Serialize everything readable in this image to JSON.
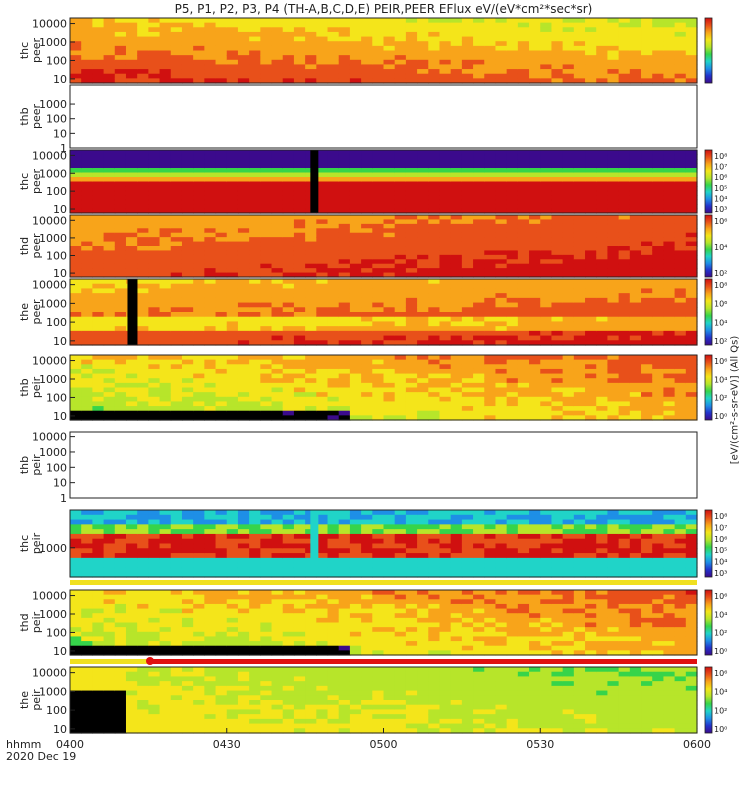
{
  "title": "P5, P1, P2, P3, P4 (TH-A,B,C,D,E) PEIR,PEER EFlux eV/(eV*cm²*sec*sr)",
  "footer": {
    "hhmm": "hhmm",
    "date": "2020 Dec 19"
  },
  "units_label": "[eV/(cm²-s-sr-eV)] (All Qs)",
  "colors": {
    "spectrogram_ramp": [
      "#3b0a8c",
      "#2233cc",
      "#1e8fe6",
      "#20d4c8",
      "#36d44a",
      "#b7e52a",
      "#f4e51a",
      "#f8a41a",
      "#e8501a",
      "#d01010"
    ],
    "gap": "#000000",
    "status_bar_yellow": "#f0e020",
    "status_bar_red": "#e01010"
  },
  "chart_data": [
    {
      "type": "heatmap",
      "panel": "thb-peer",
      "ylabel_lines": [
        "thb",
        "peer"
      ],
      "yscale": "log",
      "ylim": [
        1,
        20000
      ],
      "yticks": [
        "1000",
        "100",
        "10",
        "1"
      ],
      "has_data": false,
      "colorbar": false
    },
    {
      "type": "heatmap",
      "panel": "thc-peer",
      "ylabel_lines": [
        "thc",
        "peer"
      ],
      "yscale": "log",
      "ylim": [
        6,
        20000
      ],
      "yticks": [
        "10000",
        "1000",
        "100",
        "10"
      ],
      "has_data": true,
      "colorbar": {
        "ticks": [
          "10⁸",
          "10⁷",
          "10⁶",
          "10⁵",
          "10⁴",
          "10³"
        ]
      },
      "features": [
        "narrow gap near 0446"
      ]
    },
    {
      "type": "heatmap",
      "panel": "thd-peer",
      "ylabel_lines": [
        "thd",
        "peer"
      ],
      "yscale": "log",
      "ylim": [
        6,
        20000
      ],
      "yticks": [
        "10000",
        "1000",
        "100",
        "10"
      ],
      "has_data": true,
      "colorbar": {
        "ticks": [
          "10⁶",
          "10⁴",
          "10²"
        ]
      }
    },
    {
      "type": "heatmap",
      "panel": "the-peer",
      "ylabel_lines": [
        "the",
        "peer"
      ],
      "yscale": "log",
      "ylim": [
        6,
        20000
      ],
      "yticks": [
        "10000",
        "1000",
        "100",
        "10"
      ],
      "has_data": true,
      "colorbar": {
        "ticks": [
          "10⁸",
          "10⁶",
          "10⁴",
          "10²"
        ]
      },
      "features": [
        "data gap near 0411"
      ]
    },
    {
      "type": "heatmap",
      "panel": "thb-peir",
      "ylabel_lines": [
        "thb",
        "peir"
      ],
      "yscale": "log",
      "ylim": [
        6,
        20000
      ],
      "yticks": [
        "10000",
        "1000",
        "100",
        "10"
      ],
      "has_data": true,
      "colorbar": {
        "ticks": [
          "10⁶",
          "10⁴",
          "10²",
          "10⁰"
        ]
      }
    },
    {
      "type": "heatmap",
      "panel": "thb-peir-empty",
      "ylabel_lines": [
        "thb",
        "peir"
      ],
      "yscale": "log",
      "ylim": [
        1,
        20000
      ],
      "yticks": [
        "10000",
        "1000",
        "100",
        "10",
        "1"
      ],
      "has_data": false,
      "colorbar": false
    },
    {
      "type": "heatmap",
      "panel": "thc-peir",
      "ylabel_lines": [
        "thc",
        "peir"
      ],
      "yscale": "log",
      "ylim": [
        200,
        8000
      ],
      "yticks": [
        "1000"
      ],
      "has_data": true,
      "colorbar": {
        "ticks": [
          "10⁸",
          "10⁷",
          "10⁶",
          "10⁵",
          "10⁴",
          "10³"
        ]
      },
      "features": [
        "narrow gap near 0446"
      ]
    },
    {
      "type": "heatmap",
      "panel": "thd-peir",
      "ylabel_lines": [
        "thd",
        "peir"
      ],
      "yscale": "log",
      "ylim": [
        6,
        20000
      ],
      "yticks": [
        "10000",
        "1000",
        "100",
        "10"
      ],
      "has_data": true,
      "colorbar": {
        "ticks": [
          "10⁶",
          "10⁴",
          "10²",
          "10⁰"
        ]
      }
    },
    {
      "type": "heatmap",
      "panel": "the-peir",
      "ylabel_lines": [
        "the",
        "peir"
      ],
      "yscale": "log",
      "ylim": [
        6,
        20000
      ],
      "yticks": [
        "10000",
        "1000",
        "100",
        "10"
      ],
      "has_data": true,
      "colorbar": {
        "ticks": [
          "10⁶",
          "10⁴",
          "10²",
          "10⁰"
        ]
      },
      "features": [
        "data gap 0400-0411"
      ]
    }
  ],
  "x_axis": {
    "type": "time",
    "range": [
      "0400",
      "0600"
    ],
    "ticks": [
      "0400",
      "0430",
      "0500",
      "0530",
      "0600"
    ]
  }
}
